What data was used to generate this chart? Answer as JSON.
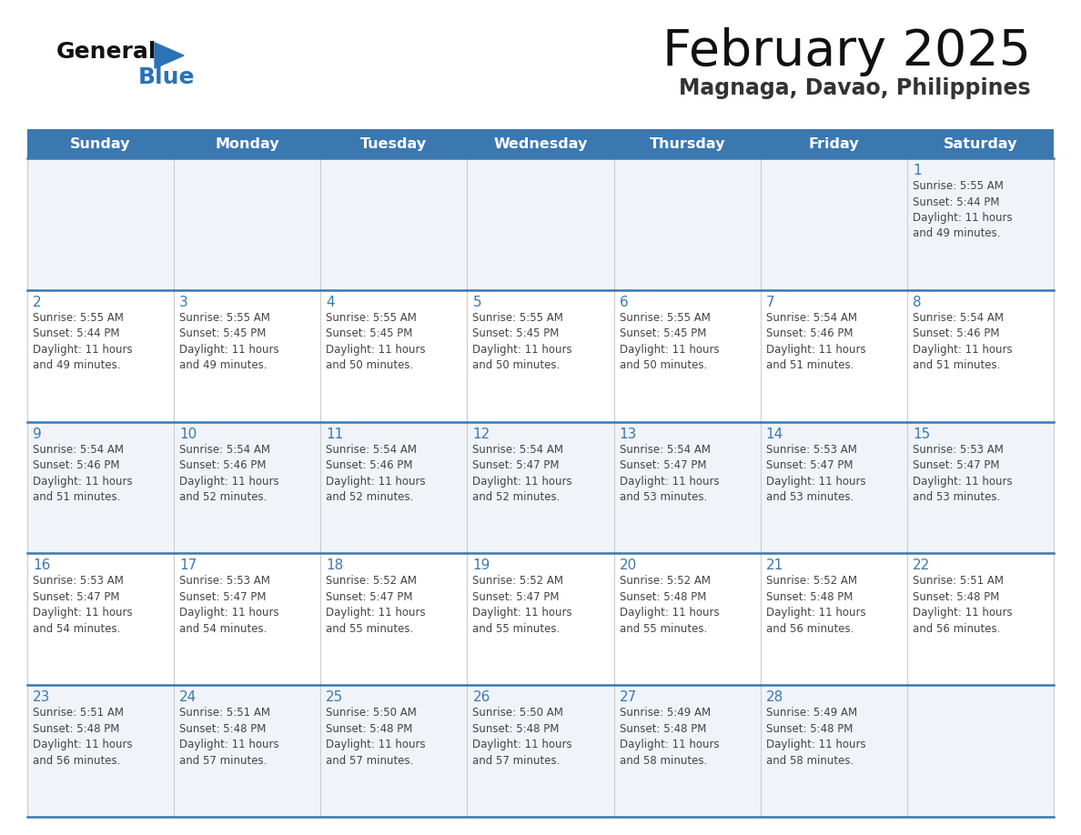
{
  "title": "February 2025",
  "subtitle": "Magnaga, Davao, Philippines",
  "header_bg_color": "#3b78b0",
  "header_text_color": "#ffffff",
  "cell_bg_color_light": "#f0f4f8",
  "cell_bg_color_white": "#ffffff",
  "day_number_color": "#3b78b0",
  "text_color": "#444444",
  "line_color": "#3b78b0",
  "days_of_week": [
    "Sunday",
    "Monday",
    "Tuesday",
    "Wednesday",
    "Thursday",
    "Friday",
    "Saturday"
  ],
  "calendar_data": [
    [
      null,
      null,
      null,
      null,
      null,
      null,
      {
        "day": 1,
        "sunrise": "5:55 AM",
        "sunset": "5:44 PM",
        "daylight": "11 hours\nand 49 minutes."
      }
    ],
    [
      {
        "day": 2,
        "sunrise": "5:55 AM",
        "sunset": "5:44 PM",
        "daylight": "11 hours\nand 49 minutes."
      },
      {
        "day": 3,
        "sunrise": "5:55 AM",
        "sunset": "5:45 PM",
        "daylight": "11 hours\nand 49 minutes."
      },
      {
        "day": 4,
        "sunrise": "5:55 AM",
        "sunset": "5:45 PM",
        "daylight": "11 hours\nand 50 minutes."
      },
      {
        "day": 5,
        "sunrise": "5:55 AM",
        "sunset": "5:45 PM",
        "daylight": "11 hours\nand 50 minutes."
      },
      {
        "day": 6,
        "sunrise": "5:55 AM",
        "sunset": "5:45 PM",
        "daylight": "11 hours\nand 50 minutes."
      },
      {
        "day": 7,
        "sunrise": "5:54 AM",
        "sunset": "5:46 PM",
        "daylight": "11 hours\nand 51 minutes."
      },
      {
        "day": 8,
        "sunrise": "5:54 AM",
        "sunset": "5:46 PM",
        "daylight": "11 hours\nand 51 minutes."
      }
    ],
    [
      {
        "day": 9,
        "sunrise": "5:54 AM",
        "sunset": "5:46 PM",
        "daylight": "11 hours\nand 51 minutes."
      },
      {
        "day": 10,
        "sunrise": "5:54 AM",
        "sunset": "5:46 PM",
        "daylight": "11 hours\nand 52 minutes."
      },
      {
        "day": 11,
        "sunrise": "5:54 AM",
        "sunset": "5:46 PM",
        "daylight": "11 hours\nand 52 minutes."
      },
      {
        "day": 12,
        "sunrise": "5:54 AM",
        "sunset": "5:47 PM",
        "daylight": "11 hours\nand 52 minutes."
      },
      {
        "day": 13,
        "sunrise": "5:54 AM",
        "sunset": "5:47 PM",
        "daylight": "11 hours\nand 53 minutes."
      },
      {
        "day": 14,
        "sunrise": "5:53 AM",
        "sunset": "5:47 PM",
        "daylight": "11 hours\nand 53 minutes."
      },
      {
        "day": 15,
        "sunrise": "5:53 AM",
        "sunset": "5:47 PM",
        "daylight": "11 hours\nand 53 minutes."
      }
    ],
    [
      {
        "day": 16,
        "sunrise": "5:53 AM",
        "sunset": "5:47 PM",
        "daylight": "11 hours\nand 54 minutes."
      },
      {
        "day": 17,
        "sunrise": "5:53 AM",
        "sunset": "5:47 PM",
        "daylight": "11 hours\nand 54 minutes."
      },
      {
        "day": 18,
        "sunrise": "5:52 AM",
        "sunset": "5:47 PM",
        "daylight": "11 hours\nand 55 minutes."
      },
      {
        "day": 19,
        "sunrise": "5:52 AM",
        "sunset": "5:47 PM",
        "daylight": "11 hours\nand 55 minutes."
      },
      {
        "day": 20,
        "sunrise": "5:52 AM",
        "sunset": "5:48 PM",
        "daylight": "11 hours\nand 55 minutes."
      },
      {
        "day": 21,
        "sunrise": "5:52 AM",
        "sunset": "5:48 PM",
        "daylight": "11 hours\nand 56 minutes."
      },
      {
        "day": 22,
        "sunrise": "5:51 AM",
        "sunset": "5:48 PM",
        "daylight": "11 hours\nand 56 minutes."
      }
    ],
    [
      {
        "day": 23,
        "sunrise": "5:51 AM",
        "sunset": "5:48 PM",
        "daylight": "11 hours\nand 56 minutes."
      },
      {
        "day": 24,
        "sunrise": "5:51 AM",
        "sunset": "5:48 PM",
        "daylight": "11 hours\nand 57 minutes."
      },
      {
        "day": 25,
        "sunrise": "5:50 AM",
        "sunset": "5:48 PM",
        "daylight": "11 hours\nand 57 minutes."
      },
      {
        "day": 26,
        "sunrise": "5:50 AM",
        "sunset": "5:48 PM",
        "daylight": "11 hours\nand 57 minutes."
      },
      {
        "day": 27,
        "sunrise": "5:49 AM",
        "sunset": "5:48 PM",
        "daylight": "11 hours\nand 58 minutes."
      },
      {
        "day": 28,
        "sunrise": "5:49 AM",
        "sunset": "5:48 PM",
        "daylight": "11 hours\nand 58 minutes."
      },
      null
    ]
  ]
}
